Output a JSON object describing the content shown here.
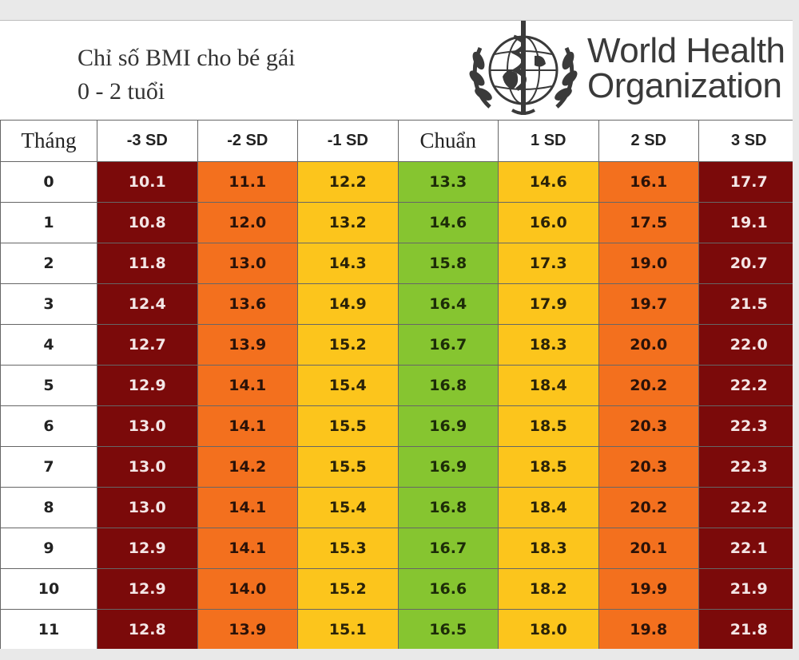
{
  "title": {
    "line1": "Chỉ số BMI cho bé gái",
    "line2": "0 - 2 tuổi"
  },
  "logo": {
    "line1": "World Health",
    "line2": "Organization",
    "icon": "who-emblem-icon"
  },
  "table": {
    "headers": [
      "Tháng",
      "-3 SD",
      "-2 SD",
      "-1 SD",
      "Chuẩn",
      "1 SD",
      "2 SD",
      "3 SD"
    ],
    "rows": [
      [
        "0",
        "10.1",
        "11.1",
        "12.2",
        "13.3",
        "14.6",
        "16.1",
        "17.7"
      ],
      [
        "1",
        "10.8",
        "12.0",
        "13.2",
        "14.6",
        "16.0",
        "17.5",
        "19.1"
      ],
      [
        "2",
        "11.8",
        "13.0",
        "14.3",
        "15.8",
        "17.3",
        "19.0",
        "20.7"
      ],
      [
        "3",
        "12.4",
        "13.6",
        "14.9",
        "16.4",
        "17.9",
        "19.7",
        "21.5"
      ],
      [
        "4",
        "12.7",
        "13.9",
        "15.2",
        "16.7",
        "18.3",
        "20.0",
        "22.0"
      ],
      [
        "5",
        "12.9",
        "14.1",
        "15.4",
        "16.8",
        "18.4",
        "20.2",
        "22.2"
      ],
      [
        "6",
        "13.0",
        "14.1",
        "15.5",
        "16.9",
        "18.5",
        "20.3",
        "22.3"
      ],
      [
        "7",
        "13.0",
        "14.2",
        "15.5",
        "16.9",
        "18.5",
        "20.3",
        "22.3"
      ],
      [
        "8",
        "13.0",
        "14.1",
        "15.4",
        "16.8",
        "18.4",
        "20.2",
        "22.2"
      ],
      [
        "9",
        "12.9",
        "14.1",
        "15.3",
        "16.7",
        "18.3",
        "20.1",
        "22.1"
      ],
      [
        "10",
        "12.9",
        "14.0",
        "15.2",
        "16.6",
        "18.2",
        "19.9",
        "21.9"
      ],
      [
        "11",
        "12.8",
        "13.9",
        "15.1",
        "16.5",
        "18.0",
        "19.8",
        "21.8"
      ]
    ]
  },
  "colors": {
    "sd3": "#7b0a0a",
    "sd2": "#f3701e",
    "sd1": "#fcc51c",
    "median": "#86c530"
  }
}
